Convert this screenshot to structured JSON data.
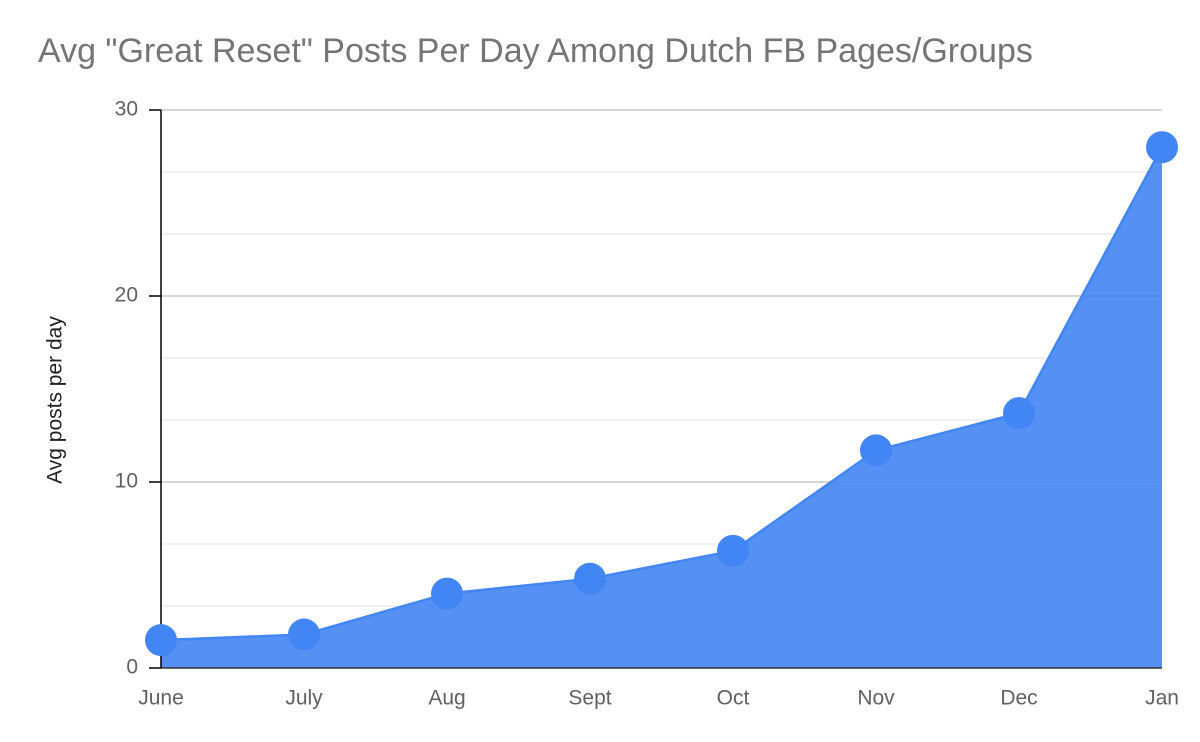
{
  "chart_data": {
    "type": "area",
    "title": "Avg \"Great Reset\" Posts Per Day Among Dutch FB Pages/Groups",
    "xlabel": "",
    "ylabel": "Avg posts per day",
    "categories": [
      "June",
      "July",
      "Aug",
      "Sept",
      "Oct",
      "Nov",
      "Dec",
      "Jan"
    ],
    "series": [
      {
        "values": [
          1.5,
          1.8,
          4.0,
          4.8,
          6.3,
          11.7,
          13.7,
          28.0
        ]
      }
    ],
    "ylim": [
      0,
      30
    ],
    "yticks": [
      "0",
      "10",
      "20",
      "30"
    ],
    "grid": true,
    "legend": "none",
    "colors": {
      "series": "#4285f4",
      "fill": "#4285f4",
      "grid": "#cccccc",
      "axis": "#000000"
    }
  }
}
